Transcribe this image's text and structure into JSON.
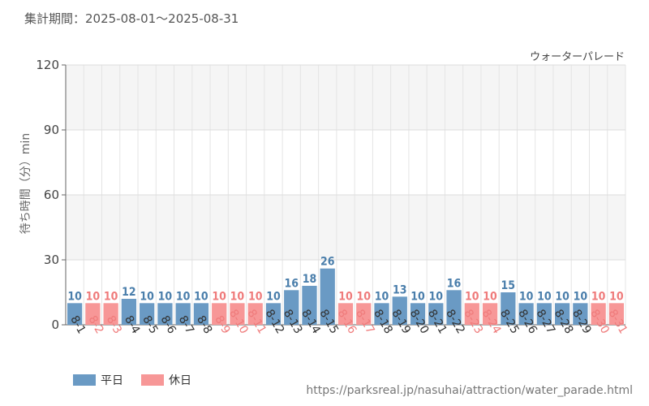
{
  "header": {
    "period": "集計期間：2025-08-01～2025-08-31"
  },
  "source_url": "https://parksreal.jp/nasuhai/attraction/water_parade.html",
  "colors": {
    "weekday": "#6a9ac4",
    "holiday": "#f79797",
    "weekday_text": "#4a7eab",
    "holiday_text": "#ef7b7b"
  },
  "chart_data": {
    "type": "bar",
    "title": "ウォーターパレード",
    "ylabel": "待ち時間（分）min",
    "ylim": [
      0,
      120
    ],
    "yticks": [
      0,
      30,
      60,
      90,
      120
    ],
    "categories": [
      "8-1",
      "8-2",
      "8-3",
      "8-4",
      "8-5",
      "8-6",
      "8-7",
      "8-8",
      "8-9",
      "8-10",
      "8-11",
      "8-12",
      "8-13",
      "8-14",
      "8-15",
      "8-16",
      "8-17",
      "8-18",
      "8-19",
      "8-20",
      "8-21",
      "8-22",
      "8-23",
      "8-24",
      "8-25",
      "8-26",
      "8-27",
      "8-28",
      "8-29",
      "8-30",
      "8-31"
    ],
    "values": [
      10,
      10,
      10,
      12,
      10,
      10,
      10,
      10,
      10,
      10,
      10,
      10,
      16,
      18,
      26,
      10,
      10,
      10,
      13,
      10,
      10,
      16,
      10,
      10,
      15,
      10,
      10,
      10,
      10,
      10,
      10
    ],
    "day_type": [
      "weekday",
      "holiday",
      "holiday",
      "weekday",
      "weekday",
      "weekday",
      "weekday",
      "weekday",
      "holiday",
      "holiday",
      "holiday",
      "weekday",
      "weekday",
      "weekday",
      "weekday",
      "holiday",
      "holiday",
      "weekday",
      "weekday",
      "weekday",
      "weekday",
      "weekday",
      "holiday",
      "holiday",
      "weekday",
      "weekday",
      "weekday",
      "weekday",
      "weekday",
      "holiday",
      "holiday"
    ],
    "legend": [
      {
        "key": "weekday",
        "label": "平日"
      },
      {
        "key": "holiday",
        "label": "休日"
      }
    ],
    "grid": true
  }
}
